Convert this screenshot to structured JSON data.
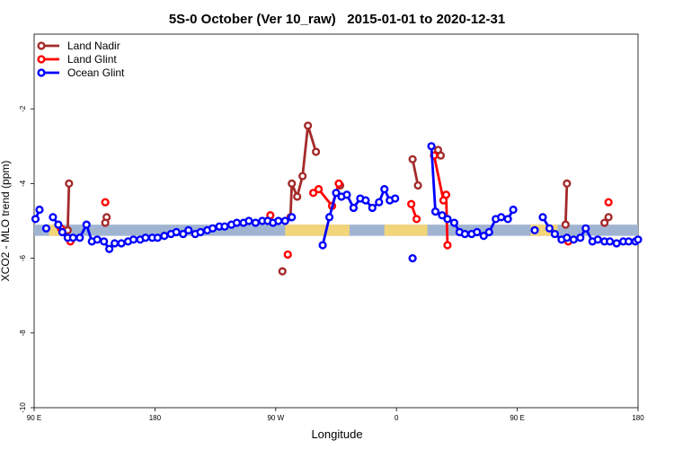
{
  "chart_data": {
    "type": "line",
    "title": "5S-0 October (Ver 10_raw)   2015-01-01 to 2020-12-31",
    "xlabel": "Longitude",
    "ylabel": "XCO2 - MLO trend (ppm)",
    "xlim": [
      90,
      540
    ],
    "ylim": [
      -10,
      0
    ],
    "x_ticks": [
      {
        "value": 90,
        "label": "90 E"
      },
      {
        "value": 180,
        "label": "180"
      },
      {
        "value": 270,
        "label": "90 W"
      },
      {
        "value": 360,
        "label": "0"
      },
      {
        "value": 450,
        "label": "90 E"
      },
      {
        "value": 540,
        "label": "180"
      }
    ],
    "y_ticks": [
      {
        "value": -2,
        "label": "-2"
      },
      {
        "value": -4,
        "label": "-4"
      },
      {
        "value": -6,
        "label": "-6"
      },
      {
        "value": -8,
        "label": "-8"
      },
      {
        "value": -10,
        "label": "-10"
      }
    ],
    "legend_position": "top-left",
    "grid": false,
    "background_band": {
      "y_range": [
        -5.4,
        -5.1
      ],
      "color": "#a0b4d2",
      "land_color": "#f2d479",
      "land_ranges": [
        [
          277,
          325
        ],
        [
          101,
          110
        ],
        [
          351,
          383
        ],
        [
          460,
          480
        ]
      ]
    },
    "series": [
      {
        "name": "Land Nadir",
        "color": "#a52a2a",
        "segments": [
          [
            [
              116,
              -4.0
            ],
            [
              115,
              -5.25
            ]
          ],
          [
            [
              144,
              -4.9
            ],
            [
              143,
              -5.05
            ]
          ],
          [
            [
              275,
              -6.35
            ]
          ],
          [
            [
              281,
              -4.9
            ],
            [
              282,
              -4.0
            ],
            [
              286,
              -4.35
            ],
            [
              290,
              -3.8
            ],
            [
              294,
              -2.45
            ],
            [
              300,
              -3.15
            ]
          ],
          [
            [
              318,
              -4.05
            ]
          ],
          [
            [
              372,
              -3.35
            ],
            [
              376,
              -4.05
            ]
          ],
          [
            [
              393,
              -3.25
            ],
            [
              391,
              -3.1
            ]
          ],
          [
            [
              487,
              -4.0
            ],
            [
              486,
              -5.1
            ]
          ],
          [
            [
              518,
              -4.9
            ],
            [
              515,
              -5.05
            ]
          ]
        ]
      },
      {
        "name": "Land Glint",
        "color": "#ff0000",
        "segments": [
          [
            [
              110,
              -5.2
            ],
            [
              117,
              -5.55
            ]
          ],
          [
            [
              143,
              -4.5
            ]
          ],
          [
            [
              266,
              -4.85
            ]
          ],
          [
            [
              279,
              -5.9
            ]
          ],
          [
            [
              298,
              -4.25
            ],
            [
              302,
              -4.15
            ],
            [
              312,
              -4.6
            ],
            [
              317,
              -4.0
            ]
          ],
          [
            [
              371,
              -4.55
            ],
            [
              375,
              -4.95
            ]
          ],
          [
            [
              388,
              -3.25
            ],
            [
              395,
              -4.45
            ],
            [
              397,
              -4.3
            ],
            [
              398,
              -5.65
            ]
          ],
          [
            [
              488,
              -5.55
            ]
          ],
          [
            [
              518,
              -4.5
            ]
          ]
        ]
      },
      {
        "name": "Ocean Glint",
        "color": "#0000ff",
        "segments": [
          [
            [
              91,
              -4.95
            ],
            [
              94,
              -4.7
            ]
          ],
          [
            [
              99,
              -5.2
            ]
          ],
          [
            [
              104,
              -4.9
            ],
            [
              108,
              -5.1
            ],
            [
              111,
              -5.3
            ],
            [
              115,
              -5.45
            ],
            [
              119,
              -5.45
            ],
            [
              124,
              -5.45
            ],
            [
              129,
              -5.1
            ],
            [
              133,
              -5.55
            ],
            [
              137,
              -5.5
            ],
            [
              142,
              -5.55
            ],
            [
              146,
              -5.75
            ],
            [
              150,
              -5.6
            ],
            [
              155,
              -5.6
            ],
            [
              160,
              -5.55
            ],
            [
              164,
              -5.5
            ],
            [
              169,
              -5.5
            ],
            [
              173,
              -5.45
            ],
            [
              178,
              -5.45
            ],
            [
              182,
              -5.45
            ],
            [
              187,
              -5.4
            ],
            [
              192,
              -5.35
            ],
            [
              196,
              -5.3
            ],
            [
              201,
              -5.35
            ],
            [
              205,
              -5.25
            ],
            [
              210,
              -5.35
            ],
            [
              214,
              -5.3
            ],
            [
              219,
              -5.25
            ],
            [
              223,
              -5.2
            ],
            [
              228,
              -5.15
            ],
            [
              232,
              -5.15
            ],
            [
              237,
              -5.1
            ],
            [
              241,
              -5.05
            ],
            [
              246,
              -5.05
            ],
            [
              250,
              -5.0
            ],
            [
              255,
              -5.05
            ],
            [
              260,
              -5.0
            ],
            [
              264,
              -5.0
            ],
            [
              268,
              -5.05
            ],
            [
              272,
              -5.0
            ],
            [
              277,
              -5.0
            ],
            [
              282,
              -4.9
            ]
          ],
          [
            [
              305,
              -5.65
            ],
            [
              310,
              -4.9
            ],
            [
              315,
              -4.25
            ],
            [
              319,
              -4.35
            ],
            [
              323,
              -4.3
            ],
            [
              328,
              -4.65
            ],
            [
              333,
              -4.4
            ],
            [
              337,
              -4.45
            ],
            [
              342,
              -4.65
            ],
            [
              347,
              -4.5
            ],
            [
              351,
              -4.15
            ],
            [
              355,
              -4.45
            ],
            [
              359,
              -4.4
            ]
          ],
          [
            [
              372,
              -6.0
            ]
          ],
          [
            [
              386,
              -3.0
            ],
            [
              389,
              -4.75
            ],
            [
              394,
              -4.85
            ],
            [
              398,
              -4.95
            ],
            [
              403,
              -5.05
            ],
            [
              407,
              -5.3
            ],
            [
              411,
              -5.35
            ],
            [
              416,
              -5.35
            ],
            [
              420,
              -5.3
            ],
            [
              425,
              -5.4
            ],
            [
              429,
              -5.3
            ],
            [
              434,
              -4.95
            ],
            [
              438,
              -4.9
            ],
            [
              443,
              -4.95
            ],
            [
              447,
              -4.7
            ]
          ],
          [
            [
              463,
              -5.25
            ]
          ],
          [
            [
              469,
              -4.9
            ],
            [
              474,
              -5.2
            ],
            [
              478,
              -5.35
            ],
            [
              483,
              -5.5
            ],
            [
              487,
              -5.45
            ],
            [
              492,
              -5.5
            ],
            [
              497,
              -5.45
            ],
            [
              501,
              -5.2
            ],
            [
              506,
              -5.55
            ],
            [
              510,
              -5.5
            ],
            [
              515,
              -5.55
            ],
            [
              519,
              -5.55
            ],
            [
              524,
              -5.6
            ],
            [
              529,
              -5.55
            ],
            [
              533,
              -5.55
            ],
            [
              538,
              -5.55
            ],
            [
              540,
              -5.5
            ]
          ]
        ]
      }
    ]
  }
}
